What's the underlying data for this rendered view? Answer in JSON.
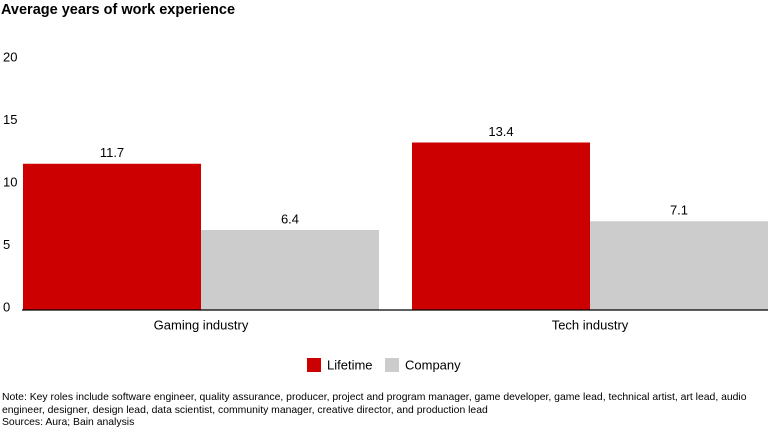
{
  "chart_data": {
    "type": "bar",
    "title": "Average years of work experience",
    "categories": [
      "Gaming industry",
      "Tech industry"
    ],
    "series": [
      {
        "name": "Lifetime",
        "color": "#cc0000",
        "values": [
          11.7,
          13.4
        ]
      },
      {
        "name": "Company",
        "color": "#cccccc",
        "values": [
          6.4,
          7.1
        ]
      }
    ],
    "ylim": [
      0,
      20
    ],
    "yticks": [
      0,
      5,
      10,
      15,
      20
    ],
    "grid": false,
    "note": "Note: Key roles include software engineer, quality assurance, producer, project and program manager, game developer, game lead, technical artist, art lead, audio engineer, designer, design lead, data scientist, community manager, creative director, and production lead",
    "source": "Sources: Aura; Bain analysis"
  }
}
